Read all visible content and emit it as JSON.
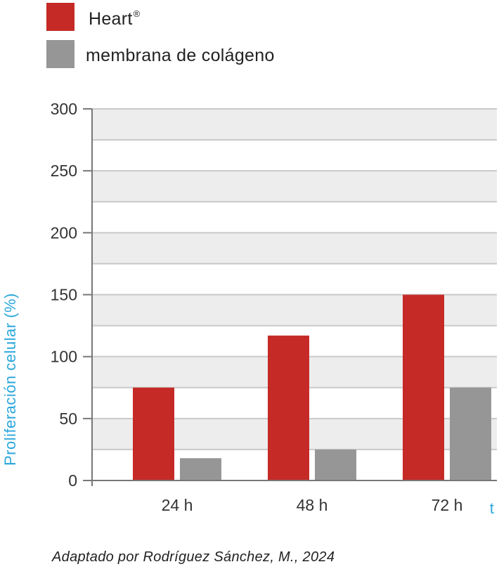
{
  "chart_data": {
    "type": "bar",
    "categories": [
      "24 h",
      "48 h",
      "72 h"
    ],
    "series": [
      {
        "name": "Heart",
        "name_suffix": "®",
        "color": "#c62a27",
        "values": [
          75,
          117,
          150
        ]
      },
      {
        "name": "membrana de colágeno",
        "color": "#969696",
        "values": [
          18,
          25,
          75
        ]
      }
    ],
    "ylabel": "Proliferación celular (%)",
    "xlabel": "t",
    "ylim": [
      0,
      300
    ],
    "yticks": [
      0,
      50,
      100,
      150,
      200,
      250,
      300
    ],
    "grid": true,
    "legend": "top-left"
  },
  "colors": {
    "band_light": "#ededed",
    "gridline": "#c9c9c9",
    "axis": "#777777",
    "accent": "#2aa7db"
  },
  "caption": "Adaptado por Rodríguez Sánchez, M., 2024"
}
